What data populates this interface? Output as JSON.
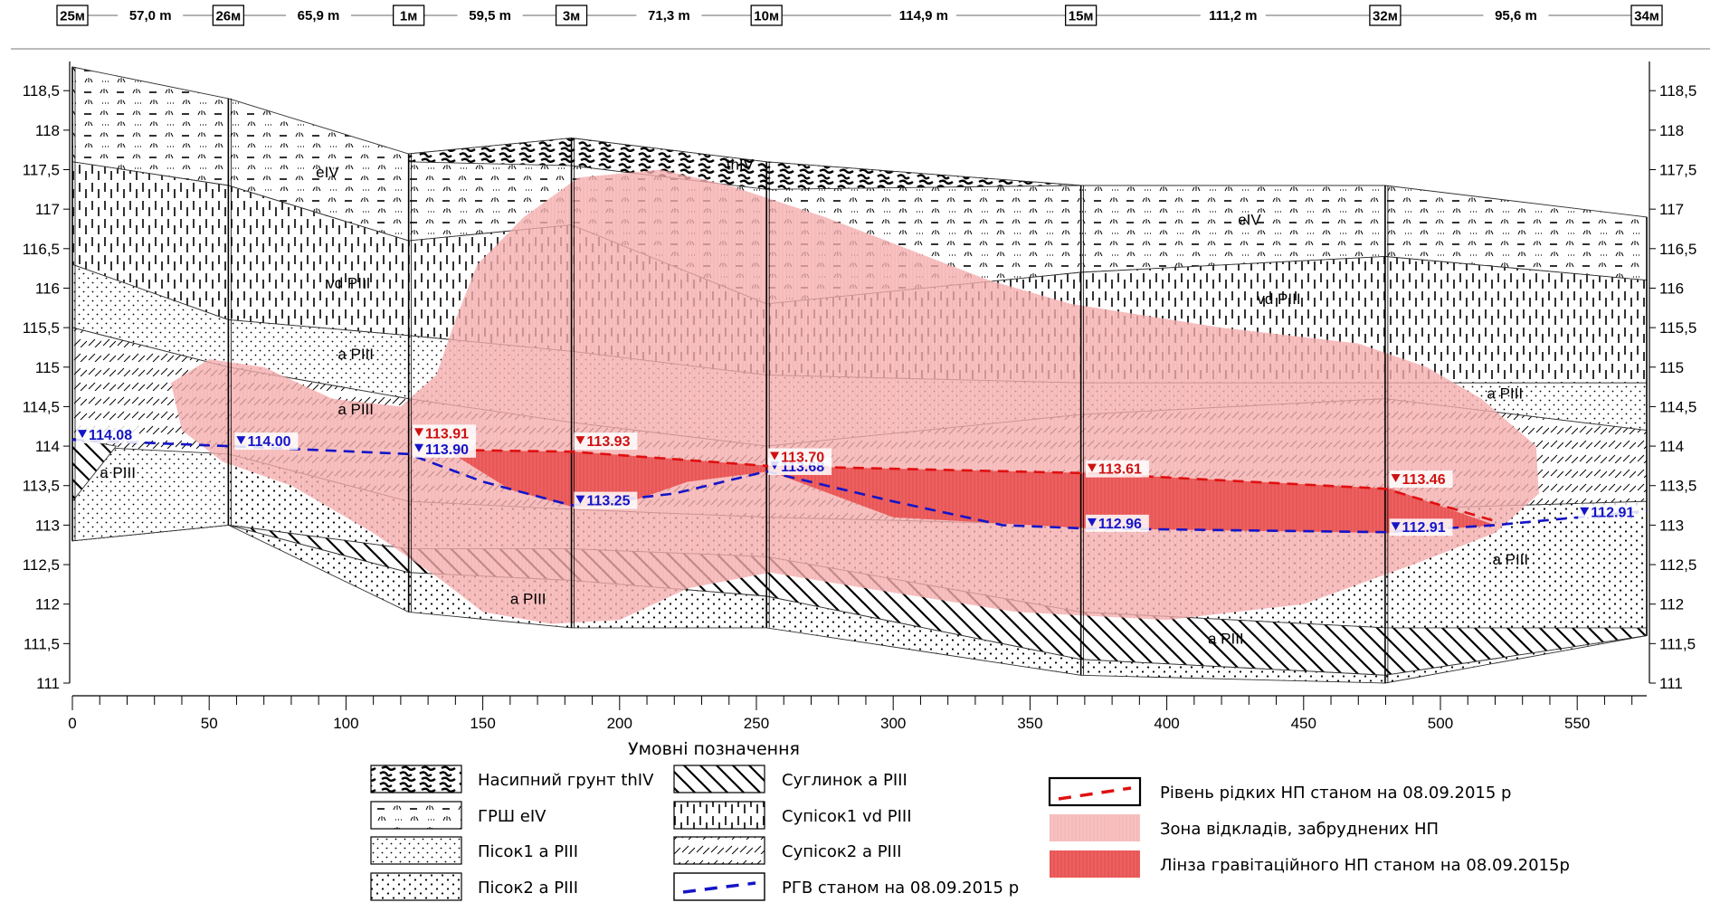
{
  "wells": [
    {
      "name": "25м",
      "x": 0
    },
    {
      "name": "26м",
      "x": 57
    },
    {
      "name": "1м",
      "x": 122.9
    },
    {
      "name": "3м",
      "x": 182.4
    },
    {
      "name": "10м",
      "x": 253.7
    },
    {
      "name": "15м",
      "x": 368.6
    },
    {
      "name": "32м",
      "x": 479.8
    },
    {
      "name": "34м",
      "x": 575.4
    }
  ],
  "distances": [
    "57,0 m",
    "65,9 m",
    "59,5 m",
    "71,3 m",
    "114,9 m",
    "111,2 m",
    "95,6 m"
  ],
  "y_axis": {
    "min": 111,
    "max": 118.5,
    "ticks": [
      "111",
      "111,5",
      "112",
      "112,5",
      "113",
      "113,5",
      "114",
      "114,5",
      "115",
      "115,5",
      "116",
      "116,5",
      "117",
      "117,5",
      "118",
      "118,5"
    ]
  },
  "x_axis": {
    "min": 0,
    "max": 575.4,
    "ticks": [
      "0",
      "50",
      "100",
      "150",
      "200",
      "250",
      "300",
      "350",
      "400",
      "450",
      "500",
      "550"
    ]
  },
  "layer_labels": [
    {
      "text": "thIV",
      "x": 239,
      "y": 117.5
    },
    {
      "text": "eIV",
      "x": 89,
      "y": 117.4
    },
    {
      "text": "eIV",
      "x": 426,
      "y": 116.8
    },
    {
      "text": "vd PIII",
      "x": 93,
      "y": 116
    },
    {
      "text": "vd PIII",
      "x": 433,
      "y": 115.8
    },
    {
      "text": "a PIII",
      "x": 97,
      "y": 115.1
    },
    {
      "text": "a PIII",
      "x": 97,
      "y": 114.4
    },
    {
      "text": "a PIII",
      "x": 517,
      "y": 114.6
    },
    {
      "text": "a PIII",
      "x": 10,
      "y": 113.6
    },
    {
      "text": "a PIII",
      "x": 519,
      "y": 112.5
    },
    {
      "text": "a PIII",
      "x": 160,
      "y": 112
    },
    {
      "text": "a PIII",
      "x": 415,
      "y": 111.5
    }
  ],
  "groundwater_levels": [
    {
      "text": "114.08",
      "x": 2,
      "y": 114.08
    },
    {
      "text": "114.00",
      "x": 60,
      "y": 114.0
    },
    {
      "text": "113.90",
      "x": 125,
      "y": 113.9
    },
    {
      "text": "113.25",
      "x": 184,
      "y": 113.25
    },
    {
      "text": "113.68",
      "x": 255,
      "y": 113.68
    },
    {
      "text": "112.96",
      "x": 371,
      "y": 112.96
    },
    {
      "text": "112.91",
      "x": 482,
      "y": 112.91
    },
    {
      "text": "112.91",
      "x": 551,
      "y": 113.1
    }
  ],
  "oil_levels": [
    {
      "text": "113.91",
      "x": 125,
      "y": 114.1
    },
    {
      "text": "113.93",
      "x": 184,
      "y": 114.0
    },
    {
      "text": "113.70",
      "x": 255,
      "y": 113.8
    },
    {
      "text": "113.61",
      "x": 371,
      "y": 113.65
    },
    {
      "text": "113.46",
      "x": 482,
      "y": 113.52
    }
  ],
  "caption": "Умовні позначення",
  "legend": {
    "col1": [
      "Насипний грунт thIV",
      "ГРШ eIV",
      "Пісок1 а PIII",
      "Пісок2 а PIII"
    ],
    "col2": [
      "Суглинок а PIII",
      "Супісок1 vd PIII",
      "Супісок2 а PIII",
      "РГВ станом на 08.09.2015 р"
    ],
    "col3": [
      "Рівень рідких НП станом на 08.09.2015 р",
      "Зона відкладів, забруднених НП",
      "Лінза гравітаційного НП станом на 08.09.2015р"
    ]
  },
  "colors": {
    "rgv": "#1414c8",
    "np_level": "#e01010",
    "zone": "#f5b3b3",
    "lens": "#ee6060"
  }
}
